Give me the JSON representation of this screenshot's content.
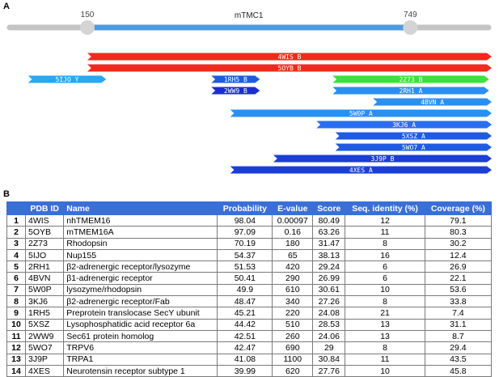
{
  "panels": {
    "a": "A",
    "b": "B"
  },
  "track": {
    "label": "mTMC1",
    "start_label": "150",
    "end_label": "749",
    "start": 150,
    "end": 749,
    "full_length": 900,
    "colors": {
      "outside": "#c4c4c4",
      "inside": "#4e9ae2",
      "handle": "#d4d4d4"
    }
  },
  "hits": [
    {
      "label": "4WIS_B",
      "start": 150,
      "end": 900,
      "row": 0,
      "color": "#f02a1c"
    },
    {
      "label": "5OYB_B",
      "start": 150,
      "end": 900,
      "row": 1,
      "color": "#f02a1c"
    },
    {
      "label": "5IJO_Y",
      "start": 40,
      "end": 185,
      "row": 2,
      "color": "#28a8f0"
    },
    {
      "label": "1RH5_B",
      "start": 380,
      "end": 470,
      "row": 2,
      "color": "#1f5be0"
    },
    {
      "label": "2Z73_B",
      "start": 605,
      "end": 895,
      "row": 2,
      "color": "#3ae23a"
    },
    {
      "label": "2WW9_B",
      "start": 380,
      "end": 470,
      "row": 3,
      "color": "#1a2ed0"
    },
    {
      "label": "2RH1_A",
      "start": 605,
      "end": 895,
      "row": 3,
      "color": "#2a8ff0"
    },
    {
      "label": "4BVN_A",
      "start": 680,
      "end": 900,
      "row": 4,
      "color": "#2a8ff0"
    },
    {
      "label": "5W0P_A",
      "start": 415,
      "end": 900,
      "row": 5,
      "color": "#2a8ff0"
    },
    {
      "label": "3KJ6_A",
      "start": 575,
      "end": 900,
      "row": 6,
      "color": "#2a6ef0"
    },
    {
      "label": "5XSZ_A",
      "start": 610,
      "end": 900,
      "row": 7,
      "color": "#1f5be0"
    },
    {
      "label": "5WO7_A",
      "start": 610,
      "end": 900,
      "row": 8,
      "color": "#1f5be0"
    },
    {
      "label": "3J9P_B",
      "start": 495,
      "end": 900,
      "row": 9,
      "color": "#1a3ed6"
    },
    {
      "label": "4XES_A",
      "start": 415,
      "end": 900,
      "row": 10,
      "color": "#1a3ed6"
    }
  ],
  "table": {
    "headers": [
      "",
      "PDB ID",
      "Name",
      "Probability",
      "E-value",
      "Score",
      "Seq. identity (%)",
      "Coverage (%)"
    ],
    "rows": [
      [
        "1",
        "4WIS",
        "nhTMEM16",
        "98.04",
        "0.00097",
        "80.49",
        "12",
        "79.1"
      ],
      [
        "2",
        "5OYB",
        "mTMEM16A",
        "97.09",
        "0.16",
        "63.26",
        "11",
        "80.3"
      ],
      [
        "3",
        "2Z73",
        "Rhodopsin",
        "70.19",
        "180",
        "31.47",
        "8",
        "30.2"
      ],
      [
        "4",
        "5IJO",
        "Nup155",
        "54.37",
        "65",
        "38.13",
        "16",
        "12.4"
      ],
      [
        "5",
        "2RH1",
        "β2-adrenergic receptor/lysozyme",
        "51.53",
        "420",
        "29.24",
        "6",
        "26.9"
      ],
      [
        "6",
        "4BVN",
        "β1-adrenergic receptor",
        "50.41",
        "290",
        "26.99",
        "6",
        "22.1"
      ],
      [
        "7",
        "5W0P",
        "lysozyme/rhodopsin",
        "49.9",
        "610",
        "30.61",
        "10",
        "53.6"
      ],
      [
        "8",
        "3KJ6",
        "β2-adrenergic receptor/Fab",
        "48.47",
        "340",
        "27.26",
        "8",
        "33.8"
      ],
      [
        "9",
        "1RH5",
        "Preprotein translocase SecY ubunit",
        "45.21",
        "220",
        "24.08",
        "21",
        "7.4"
      ],
      [
        "10",
        "5XSZ",
        "Lysophosphatidic acid receptor 6a",
        "44.42",
        "510",
        "28.53",
        "13",
        "31.1"
      ],
      [
        "11",
        "2WW9",
        "Sec61 protein homolog",
        "42.51",
        "260",
        "24.06",
        "13",
        "8.7"
      ],
      [
        "12",
        "5WO7",
        "TRPV6",
        "42.47",
        "690",
        "29",
        "8",
        "29.4"
      ],
      [
        "13",
        "3J9P",
        "TRPA1",
        "41.08",
        "1100",
        "30.84",
        "11",
        "43.5"
      ],
      [
        "14",
        "4XES",
        "Neurotensin receptor subtype 1",
        "39.99",
        "620",
        "27.76",
        "10",
        "45.8"
      ]
    ]
  }
}
